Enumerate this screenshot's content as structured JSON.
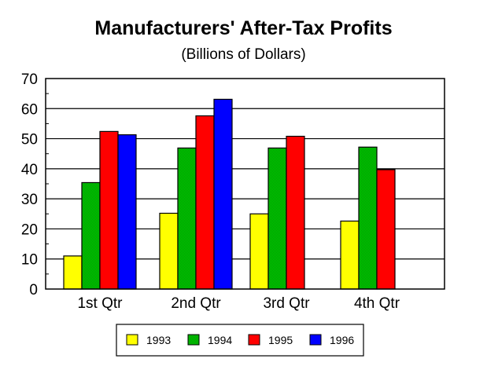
{
  "chart_data": {
    "type": "bar",
    "title": "Manufacturers' After-Tax Profits",
    "subtitle": "(Billions of Dollars)",
    "xlabel": "",
    "ylabel": "",
    "ylim": [
      0,
      70
    ],
    "yticks": [
      "0",
      "10",
      "20",
      "30",
      "40",
      "50",
      "60",
      "70"
    ],
    "grid": true,
    "legend_position": "bottom",
    "categories": [
      "1st Qtr",
      "2nd Qtr",
      "3rd Qtr",
      "4th Qtr"
    ],
    "series": [
      {
        "name": "1993",
        "color": "#ffff00",
        "values": [
          11.0,
          25.2,
          25.0,
          22.6
        ]
      },
      {
        "name": "1994",
        "color": "#00cc00",
        "values": [
          35.4,
          46.9,
          46.9,
          47.2
        ]
      },
      {
        "name": "1995",
        "color": "#ff0000",
        "values": [
          52.4,
          57.6,
          50.8,
          39.7
        ]
      },
      {
        "name": "1996",
        "color": "#0000ff",
        "values": [
          51.3,
          63.1,
          null,
          null
        ]
      }
    ]
  }
}
